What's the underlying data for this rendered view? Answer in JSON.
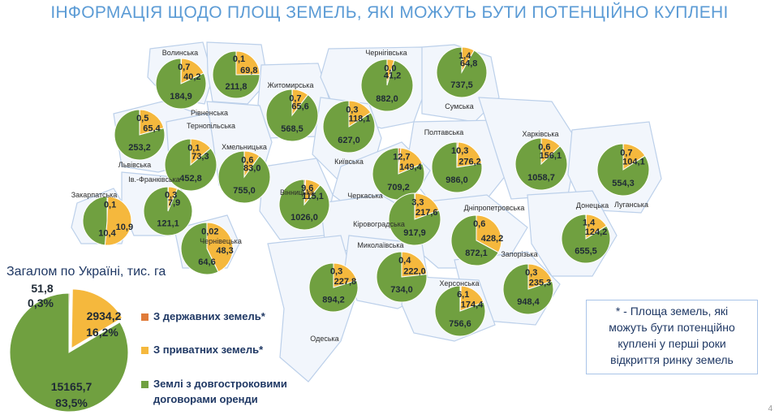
{
  "title": "ІНФОРМАЦІЯ ЩОДО ПЛОЩ ЗЕМЕЛЬ, ЯКІ МОЖУТЬ БУТИ ПОТЕНЦІЙНО КУПЛЕНІ",
  "colors": {
    "state": "#e07b39",
    "private": "#f5b83d",
    "lease": "#70a040",
    "region_fill": "#f2f6fc",
    "region_stroke": "#bcd0ea",
    "title": "#5b9bd5"
  },
  "total": {
    "title": "Загалом по Україні, тис. га",
    "state_value": "51,8",
    "state_pct": "0,3%",
    "private_value": "2934,2",
    "private_pct": "16,2%",
    "lease_value": "15165,7",
    "lease_pct": "83,5%"
  },
  "legend": {
    "state_label": "З державних земель*",
    "private_label": "З приватних земель*",
    "lease_label_line1": "Землі з довгостроковими",
    "lease_label_line2": "договорами оренди"
  },
  "note": {
    "line1": "* - Площа земель, які",
    "line2": "можуть бути потенційно",
    "line3": "куплені у перші роки",
    "line4": "відкриття ринку земель"
  },
  "page_number": "4",
  "chart_data": {
    "type": "pie",
    "unit": "тис. га",
    "series_labels": [
      "З державних земель*",
      "З приватних земель*",
      "Землі з довгостроковими договорами оренди"
    ],
    "regions": [
      {
        "name": "Волинська",
        "state": "0,7",
        "private": "40,2",
        "lease": "184,9"
      },
      {
        "name": "Рівненська",
        "state": "0,1",
        "private": "69,8",
        "lease": "211,8"
      },
      {
        "name": "Житомирська",
        "state": "0,7",
        "private": "65,6",
        "lease": "568,5"
      },
      {
        "name": "Чернігівська",
        "state": "0,0",
        "private": "41,2",
        "lease": "882,0"
      },
      {
        "name": "Сумська",
        "state": "1,4",
        "private": "64,8",
        "lease": "737,5"
      },
      {
        "name": "Львівська",
        "state": "0,5",
        "private": "65,4",
        "lease": "253,2"
      },
      {
        "name": "Тернопільська",
        "state": "0,1",
        "private": "73,3",
        "lease": "452,8"
      },
      {
        "name": "Хмельницька",
        "state": "0,6",
        "private": "83,0",
        "lease": "755,0"
      },
      {
        "name": "Київська",
        "state": "0,3",
        "private": "118,1",
        "lease": "627,0"
      },
      {
        "name": "Полтавська",
        "state": "10,3",
        "private": "276,2",
        "lease": "986,0"
      },
      {
        "name": "Харківська",
        "state": "0,6",
        "private": "156,1",
        "lease": "1058,7"
      },
      {
        "name": "Луганська",
        "state": "0,7",
        "private": "104,1",
        "lease": "554,3"
      },
      {
        "name": "Черкаська",
        "state": "12,7",
        "private": "149,4",
        "lease": "709,2"
      },
      {
        "name": "Вінницька",
        "state": "9,6",
        "private": "115,1",
        "lease": "1026,0"
      },
      {
        "name": "Закарпатська",
        "state": "0,1",
        "private": "10,9",
        "lease": "10,4"
      },
      {
        "name": "Ів.-Франківська",
        "state": "0,3",
        "private": "7,9",
        "lease": "121,1"
      },
      {
        "name": "Чернівецька",
        "state": "0,02",
        "private": "48,3",
        "lease": "64,6"
      },
      {
        "name": "Кіровоградська",
        "state": "3,3",
        "private": "217,6",
        "lease": "917,9"
      },
      {
        "name": "Дніпропетровська",
        "state": "0,6",
        "private": "428,2",
        "lease": "872,1"
      },
      {
        "name": "Донецька",
        "state": "1,4",
        "private": "124,2",
        "lease": "655,5"
      },
      {
        "name": "Одеська",
        "state": "0,3",
        "private": "227,8",
        "lease": "894,2"
      },
      {
        "name": "Миколаївська",
        "state": "0,4",
        "private": "222,0",
        "lease": "734,0"
      },
      {
        "name": "Запорізька",
        "state": "0,3",
        "private": "235,3",
        "lease": "948,4"
      },
      {
        "name": "Херсонська",
        "state": "6,1",
        "private": "174,4",
        "lease": "756,6"
      }
    ]
  }
}
